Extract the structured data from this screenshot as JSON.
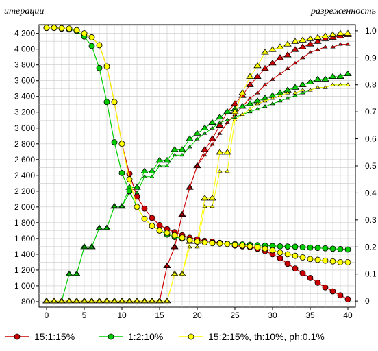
{
  "chart_data": {
    "type": "line",
    "left_axis_title": "итерации",
    "right_axis_title": "разреженность",
    "x_ticks": [
      0,
      5,
      10,
      15,
      20,
      25,
      30,
      35,
      40
    ],
    "left_ticks": [
      "800",
      "1 000",
      "1 200",
      "1 400",
      "1 600",
      "1 800",
      "2 000",
      "2 200",
      "2 400",
      "2 600",
      "2 800",
      "3 000",
      "3 200",
      "3 400",
      "3 600",
      "3 800",
      "4 000",
      "4 200"
    ],
    "right_ticks": [
      "0",
      "0.1",
      "0.2",
      "0.3",
      "0.4",
      "0.5",
      "0.6",
      "0.7",
      "0.8",
      "0.9",
      "1.0"
    ],
    "xlim": [
      -1,
      41
    ],
    "ylim_left": [
      730,
      4310
    ],
    "ylim_right": [
      -0.0225,
      1.0225
    ],
    "grid": true,
    "legend_position": "bottom",
    "x": [
      0,
      1,
      2,
      3,
      4,
      5,
      6,
      7,
      8,
      9,
      10,
      11,
      12,
      13,
      14,
      15,
      16,
      17,
      18,
      19,
      20,
      21,
      22,
      23,
      24,
      25,
      26,
      27,
      28,
      29,
      30,
      31,
      32,
      33,
      34,
      35,
      36,
      37,
      38,
      39,
      40
    ],
    "series": [
      {
        "name": "15:1:15%",
        "color": "#cc0000",
        "iterations": [
          4270,
          4270,
          4265,
          4260,
          4240,
          4200,
          4150,
          4050,
          3780,
          3330,
          2800,
          2420,
          2130,
          1980,
          1860,
          1770,
          1720,
          1680,
          1640,
          1610,
          1590,
          1570,
          1560,
          1545,
          1530,
          1510,
          1500,
          1490,
          1470,
          1440,
          1400,
          1350,
          1280,
          1220,
          1160,
          1100,
          1040,
          980,
          930,
          880,
          830
        ],
        "sparsity": [
          0,
          0,
          0,
          0,
          0,
          0,
          0,
          0,
          0,
          0,
          0,
          0,
          0,
          0,
          0,
          0,
          0.13,
          0.2,
          0.32,
          0.42,
          0.5,
          0.56,
          0.6,
          0.65,
          0.7,
          0.73,
          0.76,
          0.8,
          0.83,
          0.86,
          0.88,
          0.9,
          0.91,
          0.93,
          0.94,
          0.95,
          0.96,
          0.97,
          0.975,
          0.98,
          0.985
        ],
        "sparsity_alt": [
          0,
          0,
          0,
          0,
          0,
          0,
          0,
          0,
          0,
          0,
          0,
          0,
          0,
          0,
          0,
          0,
          0.13,
          0.2,
          0.32,
          0.42,
          0.5,
          0.54,
          0.58,
          0.62,
          0.66,
          0.69,
          0.72,
          0.75,
          0.77,
          0.8,
          0.82,
          0.84,
          0.86,
          0.88,
          0.9,
          0.92,
          0.93,
          0.94,
          0.94,
          0.95,
          0.95
        ]
      },
      {
        "name": "1:2:10%",
        "color": "#00cc00",
        "iterations": [
          4270,
          4270,
          4260,
          4250,
          4230,
          4160,
          4040,
          3760,
          3330,
          2820,
          2430,
          2200,
          2000,
          1850,
          1760,
          1700,
          1650,
          1620,
          1600,
          1580,
          1560,
          1550,
          1545,
          1540,
          1535,
          1530,
          1525,
          1520,
          1515,
          1510,
          1505,
          1500,
          1498,
          1495,
          1490,
          1485,
          1480,
          1475,
          1470,
          1465,
          1460
        ],
        "sparsity": [
          0,
          0,
          0,
          0.1,
          0.1,
          0.2,
          0.2,
          0.27,
          0.27,
          0.35,
          0.35,
          0.42,
          0.42,
          0.48,
          0.48,
          0.52,
          0.52,
          0.56,
          0.56,
          0.6,
          0.62,
          0.64,
          0.66,
          0.68,
          0.7,
          0.71,
          0.72,
          0.73,
          0.74,
          0.75,
          0.76,
          0.77,
          0.78,
          0.79,
          0.8,
          0.81,
          0.82,
          0.82,
          0.83,
          0.83,
          0.84
        ],
        "sparsity_alt": [
          0,
          0,
          0,
          0.1,
          0.1,
          0.2,
          0.2,
          0.27,
          0.27,
          0.35,
          0.35,
          0.4,
          0.4,
          0.46,
          0.46,
          0.5,
          0.5,
          0.54,
          0.54,
          0.57,
          0.6,
          0.62,
          0.64,
          0.66,
          0.67,
          0.68,
          0.69,
          0.7,
          0.71,
          0.72,
          0.73,
          0.74,
          0.75,
          0.76,
          0.77,
          0.78,
          0.79,
          0.79,
          0.8,
          0.8,
          0.8
        ]
      },
      {
        "name": "15:2:15%, th:10%, ph:0.1%",
        "color": "#ffff00",
        "iterations": [
          4270,
          4270,
          4265,
          4260,
          4240,
          4200,
          4150,
          4050,
          3780,
          3330,
          2800,
          2350,
          2000,
          1850,
          1760,
          1700,
          1670,
          1640,
          1610,
          1580,
          1560,
          1550,
          1540,
          1535,
          1530,
          1520,
          1510,
          1500,
          1490,
          1470,
          1450,
          1420,
          1400,
          1380,
          1360,
          1340,
          1330,
          1320,
          1310,
          1300,
          1300
        ],
        "sparsity": [
          0,
          0,
          0,
          0,
          0,
          0,
          0,
          0,
          0,
          0,
          0,
          0,
          0,
          0,
          0,
          0,
          0,
          0.1,
          0.1,
          0.22,
          0.22,
          0.38,
          0.38,
          0.55,
          0.55,
          0.7,
          0.77,
          0.83,
          0.87,
          0.92,
          0.93,
          0.94,
          0.95,
          0.96,
          0.965,
          0.97,
          0.975,
          0.98,
          0.985,
          0.99,
          0.99
        ],
        "sparsity_alt": [
          0,
          0,
          0,
          0,
          0,
          0,
          0,
          0,
          0,
          0,
          0,
          0,
          0,
          0,
          0,
          0,
          0,
          0.1,
          0.1,
          0.2,
          0.2,
          0.35,
          0.35,
          0.48,
          0.48,
          0.67,
          0.69,
          0.71,
          0.73,
          0.74,
          0.75,
          0.76,
          0.77,
          0.77,
          0.78,
          0.78,
          0.79,
          0.79,
          0.8,
          0.8,
          0.8
        ]
      }
    ]
  }
}
